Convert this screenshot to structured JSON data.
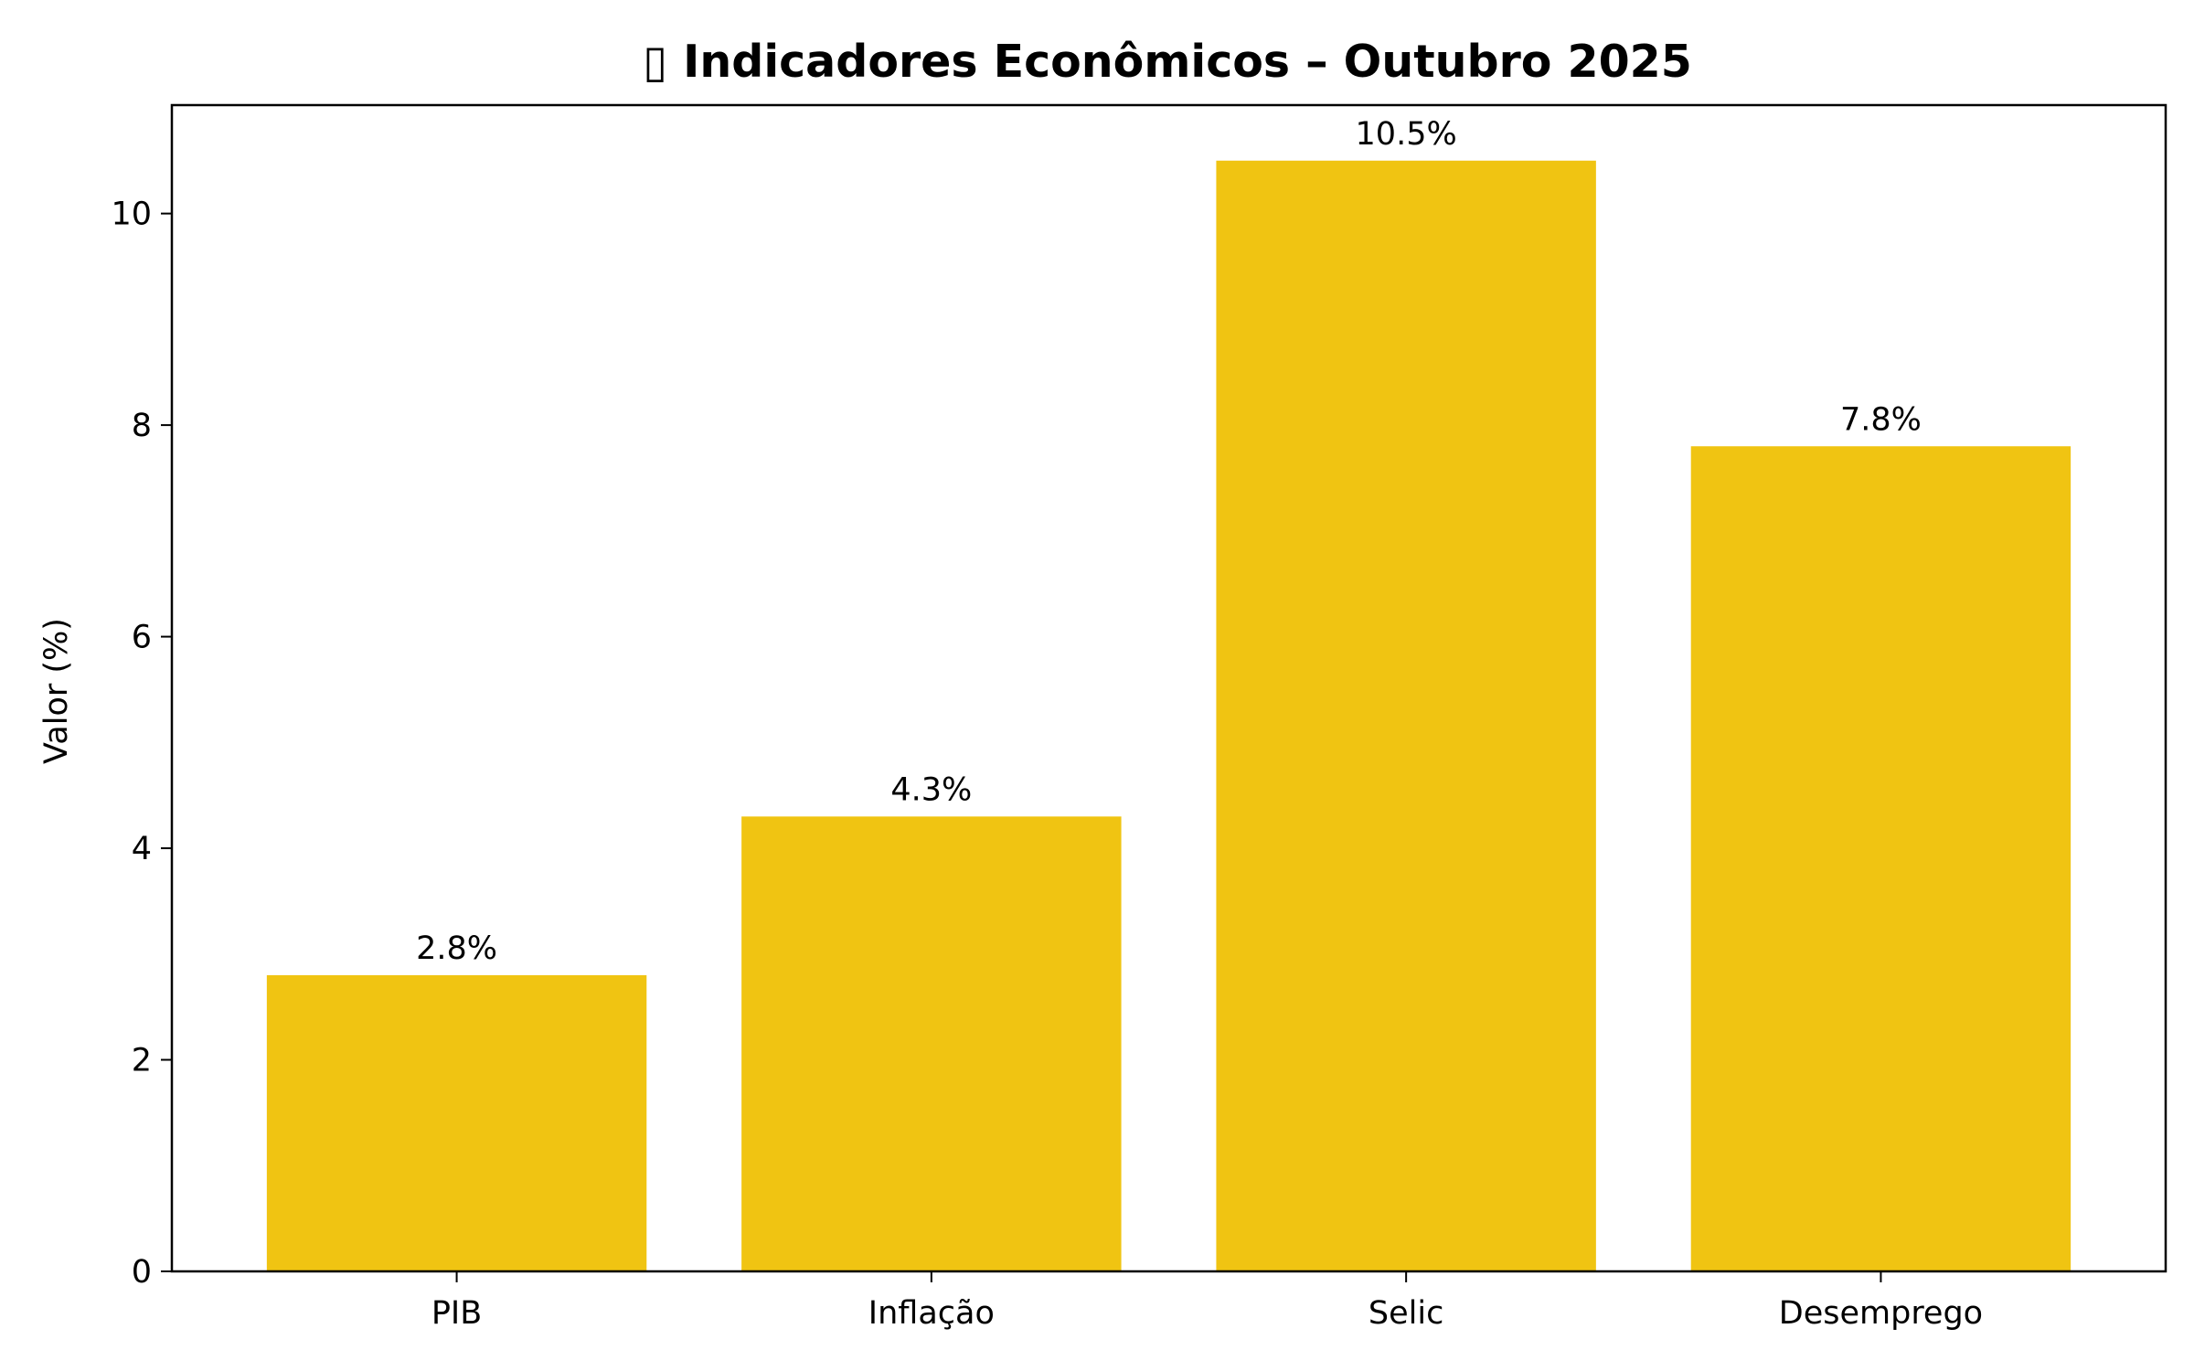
{
  "chart_data": {
    "type": "bar",
    "title": "▯ Indicadores Econômicos – Outubro 2025",
    "xlabel": "",
    "ylabel": "Valor (%)",
    "categories": [
      "PIB",
      "Inflação",
      "Selic",
      "Desemprego"
    ],
    "values": [
      2.8,
      4.3,
      10.5,
      7.8
    ],
    "data_labels": [
      "2.8%",
      "4.3%",
      "10.5%",
      "7.8%"
    ],
    "ylim": [
      0,
      11.025
    ],
    "yticks": [
      0,
      2,
      4,
      6,
      8,
      10
    ],
    "ytick_labels": [
      "0",
      "2",
      "4",
      "6",
      "8",
      "10"
    ],
    "bar_color": "#f0c412",
    "grid": false,
    "legend": "none"
  }
}
